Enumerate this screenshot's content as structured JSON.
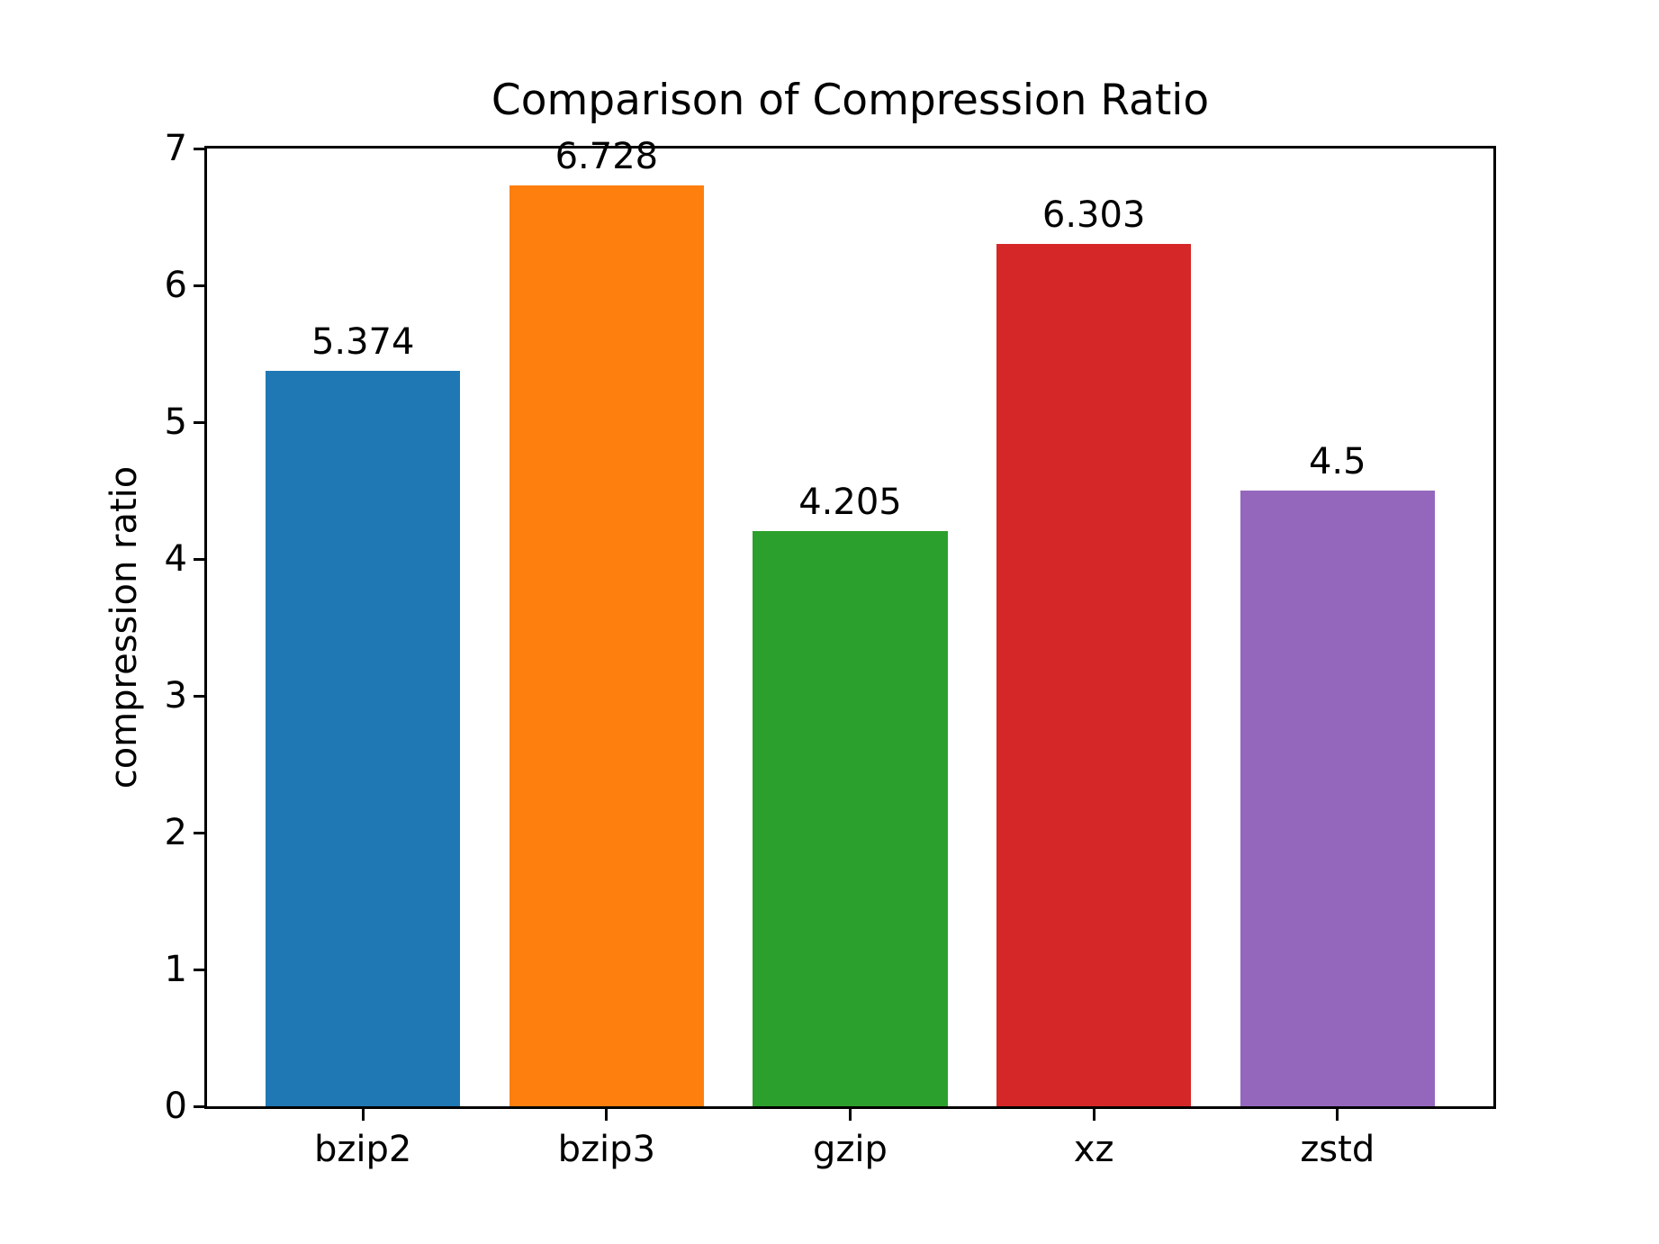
{
  "chart_data": {
    "type": "bar",
    "title": "Comparison of Compression Ratio",
    "xlabel": "",
    "ylabel": "compression ratio",
    "categories": [
      "bzip2",
      "bzip3",
      "gzip",
      "xz",
      "zstd"
    ],
    "values": [
      5.374,
      6.728,
      4.205,
      6.303,
      4.5
    ],
    "value_labels": [
      "5.374",
      "6.728",
      "4.205",
      "6.303",
      "4.5"
    ],
    "bar_colors": [
      "#1f77b4",
      "#ff7f0e",
      "#2ca02c",
      "#d62728",
      "#9467bd"
    ],
    "ylim": [
      0,
      7
    ],
    "yticks": [
      0,
      1,
      2,
      3,
      4,
      5,
      6,
      7
    ],
    "grid": false,
    "legend_position": "none",
    "background_color": "#ffffff",
    "axis_color": "#000000",
    "bar_width_fraction": 0.8
  }
}
